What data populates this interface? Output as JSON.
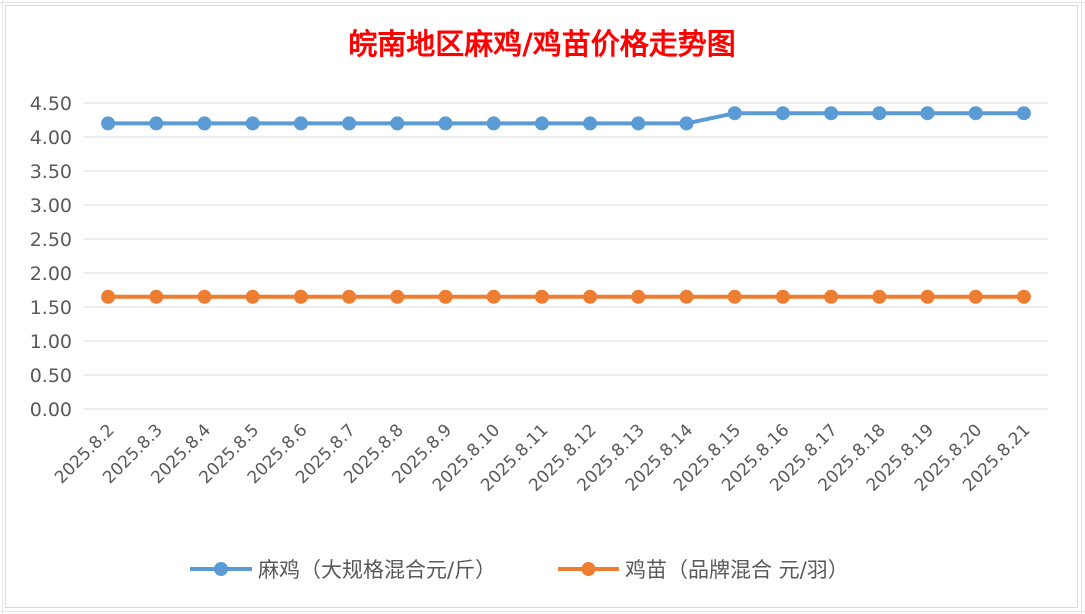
{
  "chart_data": {
    "type": "line",
    "title": "皖南地区麻鸡/鸡苗价格走势图",
    "xlabel": "",
    "ylabel": "",
    "categories": [
      "2025.8.2",
      "2025.8.3",
      "2025.8.4",
      "2025.8.5",
      "2025.8.6",
      "2025.8.7",
      "2025.8.8",
      "2025.8.9",
      "2025.8.10",
      "2025.8.11",
      "2025.8.12",
      "2025.8.13",
      "2025.8.14",
      "2025.8.15",
      "2025.8.16",
      "2025.8.17",
      "2025.8.18",
      "2025.8.19",
      "2025.8.20",
      "2025.8.21"
    ],
    "yticks": [
      "0.00",
      "0.50",
      "1.00",
      "1.50",
      "2.00",
      "2.50",
      "3.00",
      "3.50",
      "4.00",
      "4.50"
    ],
    "ylim": [
      0,
      4.5
    ],
    "grid": true,
    "legend_position": "bottom",
    "series": [
      {
        "name": "麻鸡（大规格混合元/斤）",
        "color": "#5b9bd5",
        "values": [
          4.2,
          4.2,
          4.2,
          4.2,
          4.2,
          4.2,
          4.2,
          4.2,
          4.2,
          4.2,
          4.2,
          4.2,
          4.2,
          4.35,
          4.35,
          4.35,
          4.35,
          4.35,
          4.35,
          4.35
        ]
      },
      {
        "name": "鸡苗（品牌混合 元/羽）",
        "color": "#ed7d31",
        "values": [
          1.65,
          1.65,
          1.65,
          1.65,
          1.65,
          1.65,
          1.65,
          1.65,
          1.65,
          1.65,
          1.65,
          1.65,
          1.65,
          1.65,
          1.65,
          1.65,
          1.65,
          1.65,
          1.65,
          1.65
        ]
      }
    ]
  }
}
